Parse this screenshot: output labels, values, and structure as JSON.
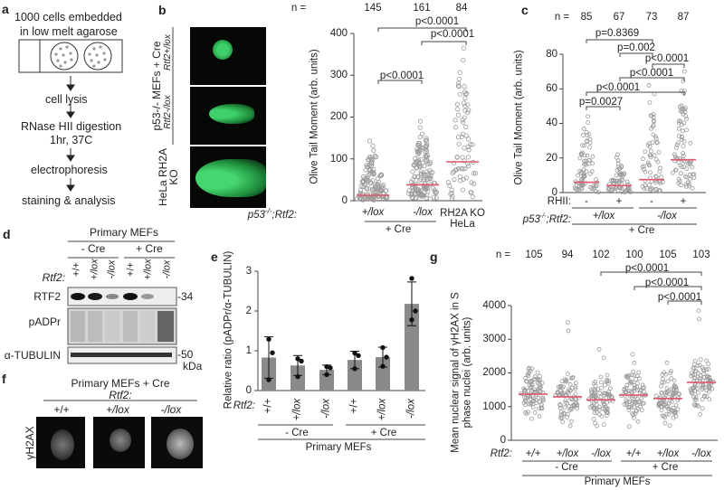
{
  "panels": {
    "a": {
      "label": "a",
      "title_line1": "1000 cells embedded",
      "title_line2": "in low melt agarose",
      "steps": [
        "cell lysis",
        "RNase HII digestion",
        "1hr, 37C",
        "electrophoresis",
        "staining & analysis"
      ]
    },
    "b": {
      "label": "b",
      "row_group": "p53-/- MEFs + Cre",
      "rows": [
        "Rtf2+/lox",
        "Rtf2-/lox",
        "HeLa RH2A KO"
      ]
    },
    "c": {
      "label": "c"
    },
    "d": {
      "label": "d",
      "header": "Primary MEFs",
      "groups": [
        "- Cre",
        "+ Cre"
      ],
      "genotype_label": "Rtf2:",
      "lanes": [
        "+/+",
        "+/lox",
        "-/lox",
        "+/+",
        "+/lox",
        "-/lox"
      ],
      "blots": [
        "RTF2",
        "pADPr",
        "α-TUBULIN"
      ],
      "markers": [
        "-34",
        "-50",
        "kDa"
      ]
    },
    "e": {
      "label": "e"
    },
    "f": {
      "label": "f",
      "title": "Primary MEFs + Cre",
      "genotype_label": "Rtf2:",
      "columns": [
        "+/+",
        "+/lox",
        "-/lox"
      ],
      "row": "γH2AX"
    },
    "g": {
      "label": "g"
    }
  },
  "chart_data": [
    {
      "panel": "b",
      "type": "scatter",
      "ylabel": "Olive Tail Moment (arb. units)",
      "ylim": [
        0,
        400
      ],
      "yticks": [
        0,
        100,
        200,
        300,
        400
      ],
      "n_label": "n =",
      "n": [
        145,
        161,
        84
      ],
      "row_label": "p53-/-;Rtf2:",
      "categories": [
        "+/lox",
        "-/lox",
        "RH2A KO HeLa"
      ],
      "group_label": "+ Cre",
      "medians": [
        13,
        38,
        93
      ],
      "max_values": [
        143,
        190,
        365
      ],
      "comparisons": [
        {
          "groups": [
            0,
            2
          ],
          "p": "p<0.0001"
        },
        {
          "groups": [
            1,
            2
          ],
          "p": "p<0.0001"
        },
        {
          "groups": [
            0,
            1
          ],
          "p": "p<0.0001"
        }
      ]
    },
    {
      "panel": "c",
      "type": "scatter",
      "ylabel": "Olive Tail Moment (arb. units)",
      "ylim": [
        0,
        80
      ],
      "yticks": [
        0,
        20,
        40,
        60,
        80
      ],
      "n_label": "n =",
      "n": [
        85,
        67,
        73,
        87
      ],
      "rhii_label": "RHII:",
      "rhii": [
        "-",
        "+",
        "-",
        "+"
      ],
      "row_label": "p53-/-;Rtf2:",
      "genotypes": [
        "+/lox",
        "-/lox"
      ],
      "group_label": "+ Cre",
      "medians": [
        6,
        4,
        7.5,
        19
      ],
      "max_values": [
        44,
        22,
        62,
        70
      ],
      "comparisons": [
        {
          "groups": [
            0,
            2
          ],
          "p": "p=0.8369"
        },
        {
          "groups": [
            1,
            2
          ],
          "p": "p=0.002"
        },
        {
          "groups": [
            2,
            3
          ],
          "p": "p<0.0001"
        },
        {
          "groups": [
            1,
            3
          ],
          "p": "p<0.0001"
        },
        {
          "groups": [
            0,
            3
          ],
          "p": "p<0.0001"
        },
        {
          "groups": [
            0,
            1
          ],
          "p": "p=0.0027"
        }
      ]
    },
    {
      "panel": "e",
      "type": "bar",
      "ylabel": "Relative ratio (pADPr/α-TUBULIN)",
      "ylim": [
        0,
        3
      ],
      "yticks": [
        0,
        1,
        2,
        3
      ],
      "row_label": "Rtf2:",
      "categories": [
        "+/+",
        "+/lox",
        "-/lox",
        "+/+",
        "+/lox",
        "-/lox"
      ],
      "groups": [
        "- Cre",
        "+ Cre"
      ],
      "xlabel": "Primary MEFs",
      "values": [
        0.83,
        0.63,
        0.52,
        0.77,
        0.84,
        2.18
      ],
      "sd": [
        0.52,
        0.25,
        0.12,
        0.22,
        0.25,
        0.55
      ],
      "points": [
        [
          1.29,
          0.95,
          0.27
        ],
        [
          0.8,
          0.74,
          0.35
        ],
        [
          0.6,
          0.57,
          0.4
        ],
        [
          0.94,
          0.88,
          0.55
        ],
        [
          1.08,
          0.84,
          0.61
        ],
        [
          2.82,
          2.0,
          1.78
        ]
      ]
    },
    {
      "panel": "g",
      "type": "scatter",
      "ylabel": "Mean nuclear signal of γH2AX in S phase nuclei (arb. units)",
      "ylim": [
        0,
        4000
      ],
      "yticks": [
        0,
        1000,
        2000,
        3000,
        4000
      ],
      "n_label": "n =",
      "n": [
        105,
        94,
        102,
        100,
        105,
        103
      ],
      "row_label": "Rtf2:",
      "categories": [
        "+/+",
        "+/lox",
        "-/lox",
        "+/+",
        "+/lox",
        "-/lox"
      ],
      "groups": [
        "- Cre",
        "+ Cre"
      ],
      "xlabel": "Primary MEFs",
      "medians": [
        1370,
        1290,
        1200,
        1340,
        1240,
        1720
      ],
      "comparisons": [
        {
          "groups": [
            2,
            5
          ],
          "p": "p<0.0001"
        },
        {
          "groups": [
            3,
            5
          ],
          "p": "p<0.0001"
        },
        {
          "groups": [
            4,
            5
          ],
          "p": "p<0.0001"
        }
      ]
    }
  ]
}
